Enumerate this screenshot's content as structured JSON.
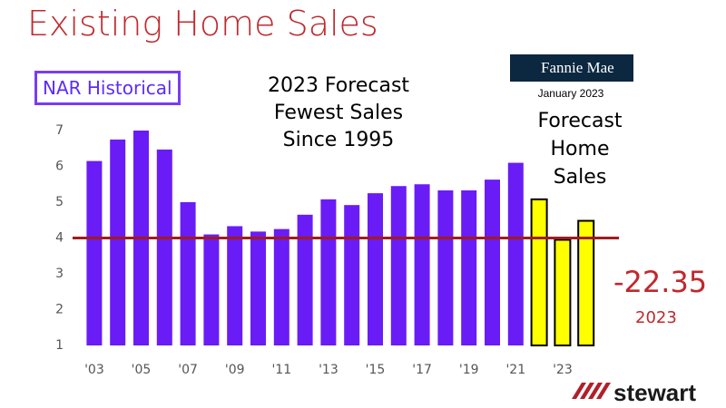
{
  "chart_data": {
    "type": "bar",
    "title": "Existing Home Sales",
    "annotation": "2023 Forecast Fewest Sales Since 1995",
    "source": "Fannie Mae",
    "source_date": "January 2023",
    "change": "-22.35",
    "change_year": "2023",
    "logo": "stewart",
    "categories": [
      "'03",
      null,
      "'05",
      null,
      "'07",
      null,
      "'09",
      null,
      "'11",
      null,
      "'13",
      null,
      "'15",
      null,
      "'17",
      null,
      "'19",
      null,
      "'21",
      null,
      "'23",
      null
    ],
    "series": [
      {
        "name": "NAR Historical",
        "color": "#6a1cf6",
        "values": [
          6.15,
          6.75,
          7.0,
          6.47,
          5.0,
          4.1,
          4.33,
          4.18,
          4.25,
          4.65,
          5.08,
          4.92,
          5.25,
          5.45,
          5.5,
          5.33,
          5.33,
          5.63,
          6.1,
          null,
          null,
          null
        ]
      },
      {
        "name": "Forecast Home Sales",
        "color": "#ffff00",
        "values": [
          null,
          null,
          null,
          null,
          null,
          null,
          null,
          null,
          null,
          null,
          null,
          null,
          null,
          null,
          null,
          null,
          null,
          null,
          null,
          5.08,
          3.95,
          4.48
        ]
      }
    ],
    "reference_line": 4,
    "reference_color": "#a01c1c",
    "ylim": [
      1,
      7
    ],
    "yticks": [
      1,
      2,
      3,
      4,
      5,
      6,
      7
    ],
    "grid": false
  }
}
